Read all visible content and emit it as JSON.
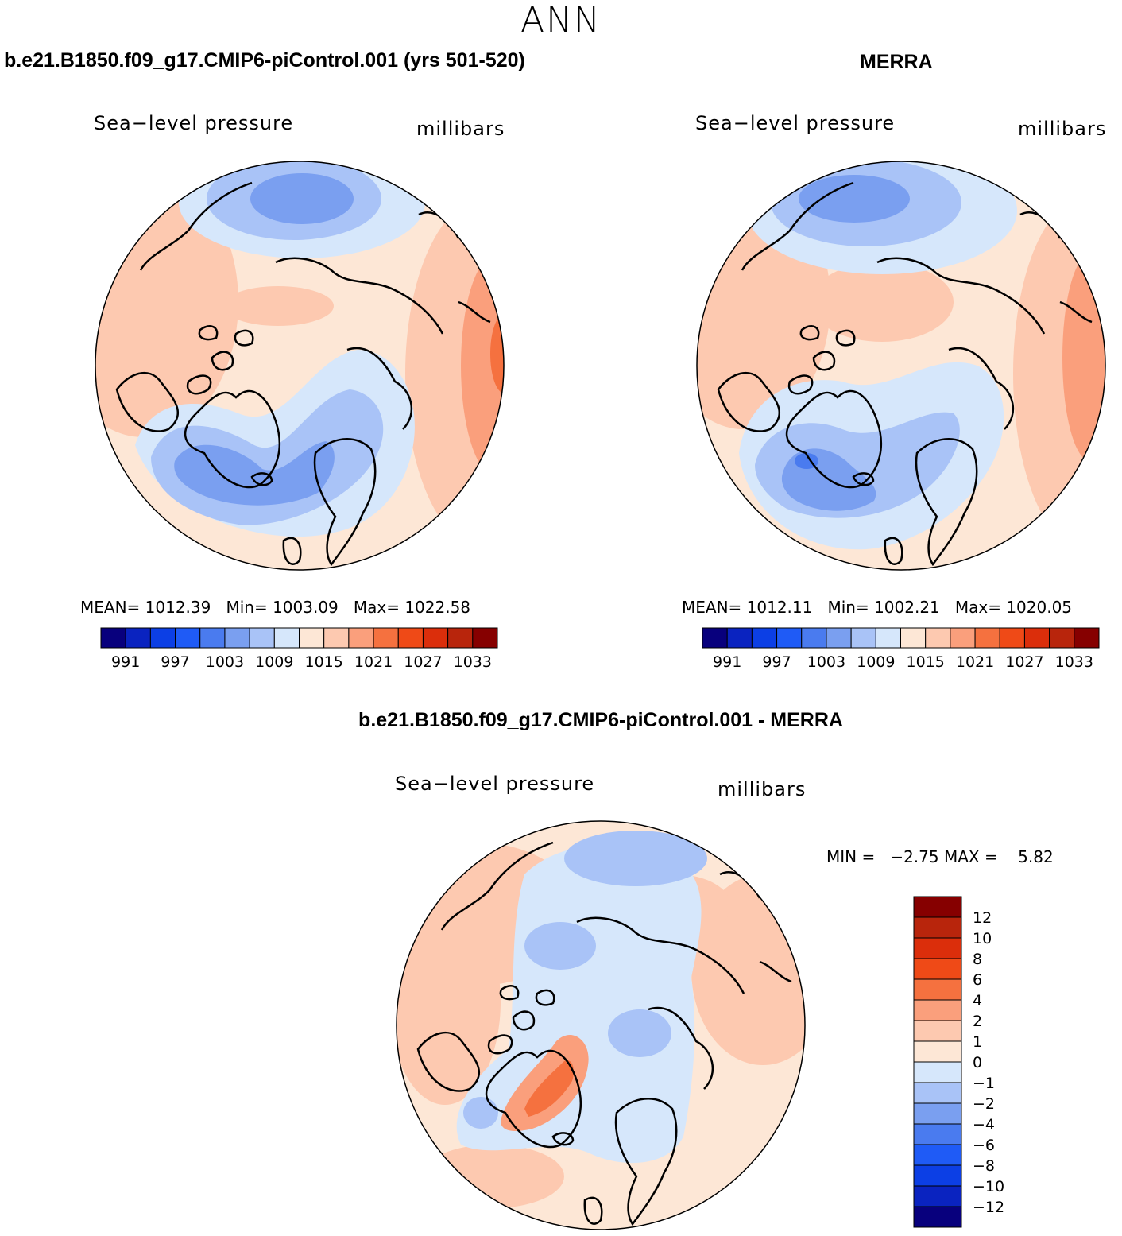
{
  "figure_title": "ANN",
  "panels": [
    {
      "title": "b.e21.B1850.f09_g17.CMIP6-piControl.001 (yrs 501-520)",
      "left_label": "Sea−level pressure",
      "right_label": "millibars",
      "stats": {
        "mean_label": "MEAN=",
        "mean": "1012.39",
        "min_label": "Min=",
        "min": "1003.09",
        "max_label": "Max=",
        "max": "1022.58"
      }
    },
    {
      "title": "MERRA",
      "left_label": "Sea−level pressure",
      "right_label": "millibars",
      "stats": {
        "mean_label": "MEAN=",
        "mean": "1012.11",
        "min_label": "Min=",
        "min": "1002.21",
        "max_label": "Max=",
        "max": "1020.05"
      }
    },
    {
      "title": "b.e21.B1850.f09_g17.CMIP6-piControl.001 - MERRA",
      "left_label": "Sea−level pressure",
      "right_label": "millibars",
      "stats": {
        "min_label": "MIN =",
        "min": "−2.75",
        "max_label": "MAX =",
        "max": "5.82"
      }
    }
  ],
  "colorbar_abs": {
    "colors": [
      "#08007d",
      "#0a23c0",
      "#0c3fe5",
      "#1f5bf6",
      "#4a7bef",
      "#7a9ff0",
      "#a9c3f7",
      "#d6e7fb",
      "#fde7d6",
      "#fdc9b0",
      "#fa9f7c",
      "#f5713f",
      "#ef4a17",
      "#db2e0b",
      "#b8250c",
      "#860000"
    ],
    "labels": [
      "991",
      "997",
      "1003",
      "1009",
      "1015",
      "1021",
      "1027",
      "1033"
    ]
  },
  "colorbar_diff": {
    "colors": [
      "#860000",
      "#b8250c",
      "#db2e0b",
      "#ef4a17",
      "#f5713f",
      "#fa9f7c",
      "#fdc9b0",
      "#fde7d6",
      "#d6e7fb",
      "#a9c3f7",
      "#7a9ff0",
      "#4a7bef",
      "#1f5bf6",
      "#0c3fe5",
      "#0a23c0",
      "#08007d"
    ],
    "labels": [
      "12",
      "10",
      "8",
      "6",
      "4",
      "2",
      "1",
      "0",
      "−1",
      "−2",
      "−4",
      "−6",
      "−8",
      "−10",
      "−12"
    ]
  }
}
